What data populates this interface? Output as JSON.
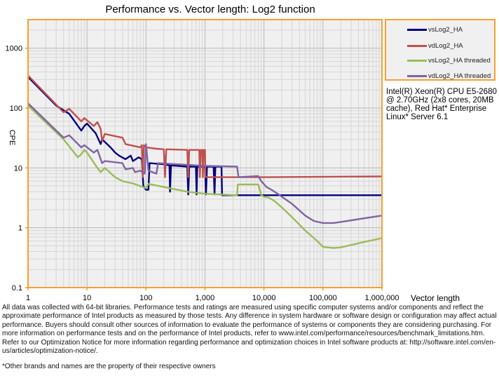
{
  "chart_data": {
    "type": "line",
    "title": "Performance vs. Vector length: Log2 function",
    "xlabel": "Vector length",
    "ylabel": "CPE",
    "xscale": "log",
    "yscale": "log",
    "xlim": [
      1,
      1000000
    ],
    "ylim": [
      0.1,
      3000
    ],
    "grid": true,
    "legend_placement": "right",
    "x_tick_labels": [
      "1",
      "10",
      "100",
      "1,000",
      "10,000",
      "100,000",
      "1,000,000"
    ],
    "x_ticks": [
      1,
      10,
      100,
      1000,
      10000,
      100000,
      1000000
    ],
    "y_tick_labels": [
      "0.1",
      "1",
      "10",
      "100",
      "1000"
    ],
    "y_ticks": [
      0.1,
      1,
      10,
      100,
      1000
    ],
    "colors": {
      "frame": "#f7a030",
      "plot_bg": "#f0f0f0"
    },
    "series": [
      {
        "name": "vsLog2_HA",
        "color": "#000080",
        "points": [
          [
            1,
            330
          ],
          [
            3,
            110
          ],
          [
            5,
            80
          ],
          [
            8,
            42
          ],
          [
            9,
            50
          ],
          [
            10,
            55
          ],
          [
            14,
            38
          ],
          [
            17,
            25
          ],
          [
            18,
            30
          ],
          [
            25,
            22
          ],
          [
            30,
            18
          ],
          [
            35,
            16
          ],
          [
            45,
            14
          ],
          [
            55,
            16
          ],
          [
            60,
            13
          ],
          [
            75,
            15
          ],
          [
            85,
            14
          ],
          [
            90,
            5
          ],
          [
            100,
            4.3
          ],
          [
            110,
            4.3
          ],
          [
            115,
            12
          ],
          [
            200,
            11.5
          ],
          [
            250,
            11
          ],
          [
            255,
            4
          ],
          [
            265,
            11
          ],
          [
            500,
            10.5
          ],
          [
            520,
            3.6
          ],
          [
            540,
            10.5
          ],
          [
            700,
            10.5
          ],
          [
            720,
            3.6
          ],
          [
            740,
            10.5
          ],
          [
            1000,
            10.5
          ],
          [
            1040,
            3.6
          ],
          [
            1080,
            10.5
          ],
          [
            1400,
            10.5
          ],
          [
            1450,
            3.6
          ],
          [
            1500,
            10.5
          ],
          [
            1900,
            10.5
          ],
          [
            1950,
            3.5
          ],
          [
            10000,
            3.5
          ],
          [
            1000000,
            3.5
          ]
        ]
      },
      {
        "name": "vdLog2_HA",
        "color": "#c0504d",
        "points": [
          [
            1,
            350
          ],
          [
            4,
            85
          ],
          [
            5,
            97
          ],
          [
            8,
            60
          ],
          [
            9,
            68
          ],
          [
            13,
            50
          ],
          [
            15,
            58
          ],
          [
            17,
            45
          ],
          [
            18,
            28
          ],
          [
            20,
            37
          ],
          [
            40,
            32
          ],
          [
            45,
            25
          ],
          [
            80,
            22
          ],
          [
            85,
            24
          ],
          [
            88,
            7
          ],
          [
            92,
            24
          ],
          [
            100,
            22
          ],
          [
            150,
            21
          ],
          [
            200,
            20.5
          ],
          [
            210,
            7
          ],
          [
            220,
            20.5
          ],
          [
            500,
            20
          ],
          [
            520,
            7
          ],
          [
            540,
            20
          ],
          [
            800,
            20
          ],
          [
            820,
            7
          ],
          [
            850,
            20
          ],
          [
            900,
            20
          ],
          [
            920,
            7
          ],
          [
            950,
            20
          ],
          [
            1000,
            20
          ],
          [
            1020,
            7
          ],
          [
            10000,
            7
          ],
          [
            1000000,
            7.2
          ]
        ]
      },
      {
        "name": "vsLog2_HA threaded",
        "color": "#9bbb59",
        "points": [
          [
            1,
            110
          ],
          [
            4,
            30
          ],
          [
            7,
            15
          ],
          [
            8,
            17
          ],
          [
            9,
            20
          ],
          [
            10,
            18
          ],
          [
            15,
            10
          ],
          [
            17,
            8.5
          ],
          [
            20,
            10
          ],
          [
            30,
            7
          ],
          [
            40,
            6
          ],
          [
            60,
            5.5
          ],
          [
            100,
            4.6
          ],
          [
            110,
            5.4
          ],
          [
            200,
            4.8
          ],
          [
            500,
            4
          ],
          [
            1000,
            3.7
          ],
          [
            3500,
            3.5
          ],
          [
            3600,
            5.3
          ],
          [
            8000,
            5.3
          ],
          [
            9000,
            3.5
          ],
          [
            10000,
            3.3
          ],
          [
            12000,
            3.2
          ],
          [
            15000,
            2.8
          ],
          [
            20000,
            2.2
          ],
          [
            30000,
            1.5
          ],
          [
            50000,
            0.9
          ],
          [
            80000,
            0.6
          ],
          [
            100000,
            0.48
          ],
          [
            150000,
            0.46
          ],
          [
            200000,
            0.47
          ],
          [
            500000,
            0.58
          ],
          [
            1000000,
            0.67
          ]
        ]
      },
      {
        "name": "vdLog2_HA threaded",
        "color": "#8064a2",
        "points": [
          [
            1,
            120
          ],
          [
            4,
            32
          ],
          [
            5,
            35
          ],
          [
            8,
            22
          ],
          [
            9,
            24
          ],
          [
            13,
            18
          ],
          [
            15,
            20
          ],
          [
            18,
            12
          ],
          [
            20,
            13
          ],
          [
            40,
            12
          ],
          [
            45,
            9.5
          ],
          [
            60,
            10
          ],
          [
            65,
            8.5
          ],
          [
            80,
            9
          ],
          [
            95,
            8
          ],
          [
            100,
            25
          ],
          [
            110,
            9
          ],
          [
            150,
            8
          ],
          [
            160,
            12
          ],
          [
            1000,
            10.8
          ],
          [
            3500,
            10.5
          ],
          [
            3700,
            7
          ],
          [
            8000,
            7.3
          ],
          [
            9000,
            6
          ],
          [
            11000,
            4.8
          ],
          [
            14000,
            4.2
          ],
          [
            17000,
            3.7
          ],
          [
            20000,
            3.3
          ],
          [
            30000,
            2.5
          ],
          [
            50000,
            1.6
          ],
          [
            70000,
            1.3
          ],
          [
            100000,
            1.2
          ],
          [
            150000,
            1.2
          ],
          [
            200000,
            1.25
          ],
          [
            1000000,
            1.6
          ]
        ]
      }
    ]
  },
  "annotation": "Intel(R) Xeon(R) CPU E5-2680 @ 2.70GHz (2x8 cores, 20MB cache), Red Hat* Enterprise Linux* Server 6.1",
  "footnote": "All data was collected with 64-bit libraries. Performance tests and ratings are measured using specific computer systems and/or components and reflect the approximate performance of Intel products as measured by those tests. Any difference in system hardware or software design or configuration may affect actual performance. Buyers should consult other sources of information to evaluate the performance of systems or components they are considering purchasing. For more information on performance tests and on the performance of Intel products, refer to www.intel.com/performance/resources/benchmark_limitations.htm. Refer to our Optimization Notice for more information regarding performance and optimization choices in Intel software products at: http://software.intel.com/en-us/articles/optimization-notice/.",
  "footnote2": "*Other brands and names are the property of their respective owners"
}
